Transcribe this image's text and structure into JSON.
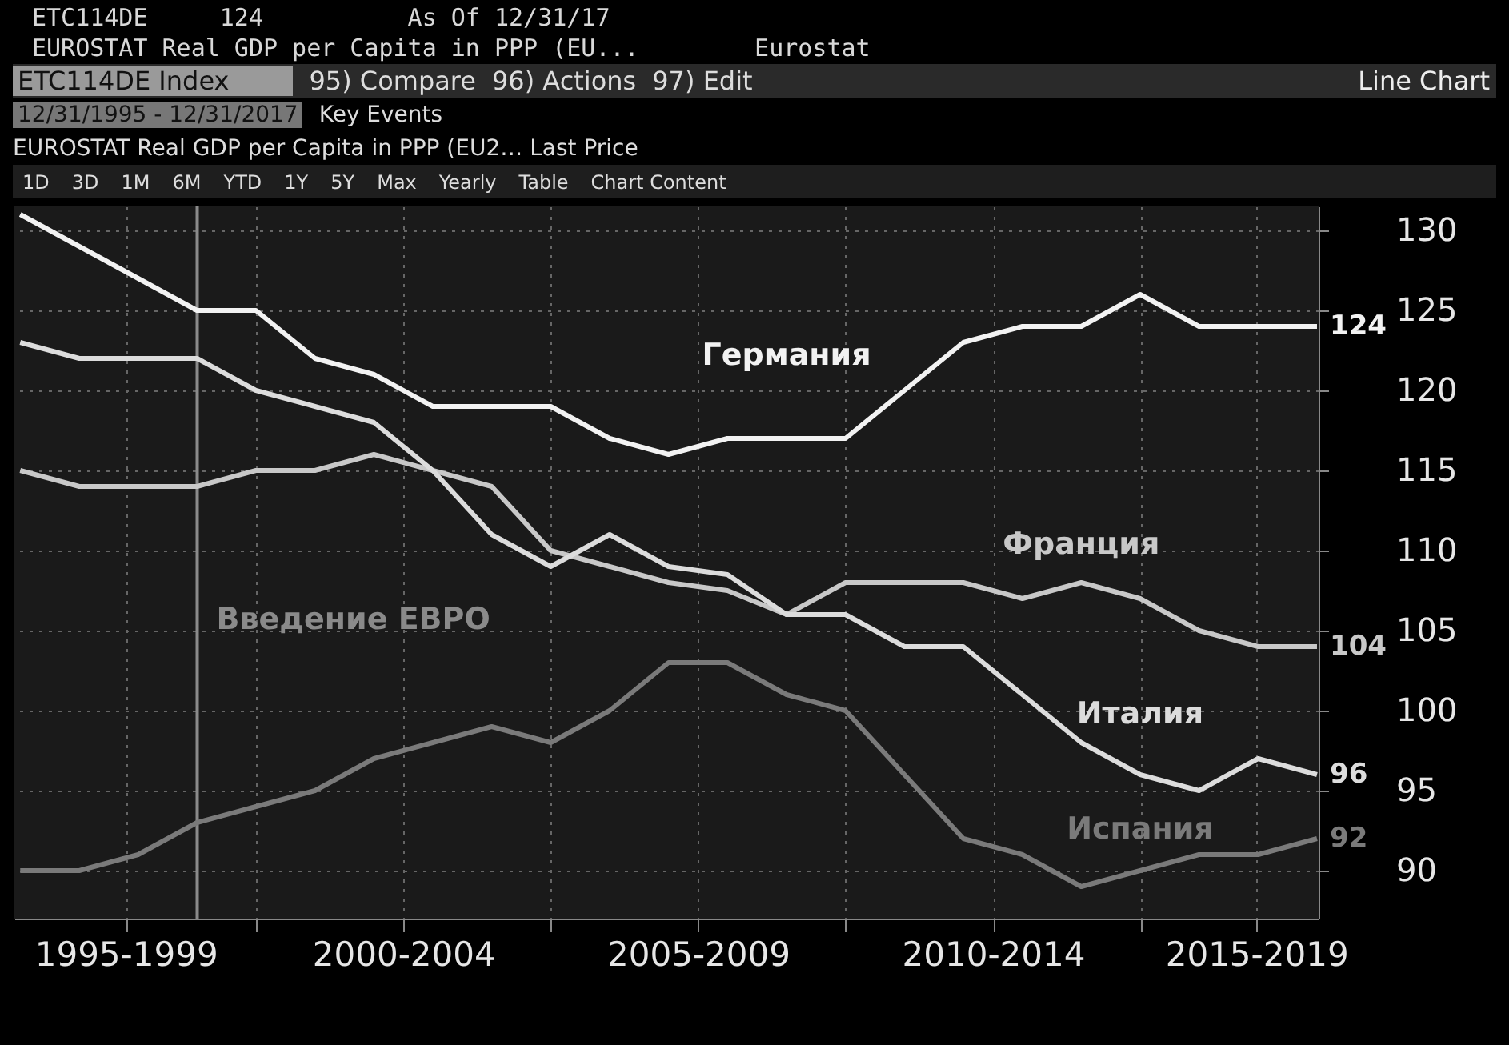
{
  "chart_data": {
    "type": "line",
    "subtitle": "ETC114DE     124          As Of 12/31/17",
    "title": "EUROSTAT Real GDP per Capita in PPP (EU...        Eurostat",
    "annotations": [
      "ETC114DE Index",
      "95) Compare",
      "96) Actions",
      "97) Edit",
      "Line Chart",
      "12/31/1995 - 12/31/2017",
      "Key Events",
      "EUROSTAT Real GDP per Capita in PPP (EU2…  Last Price",
      "1D",
      "3D",
      "1M",
      "6M",
      "YTD",
      "1Y",
      "5Y",
      "Max",
      "Yearly",
      "Table",
      "Chart Content"
    ],
    "x": [
      "1995-12-31",
      "1996-12-31",
      "1997-12-31",
      "1998-12-31",
      "1999-12-31",
      "2000-12-31",
      "2001-12-31",
      "2002-12-31",
      "2003-12-31",
      "2004-12-31",
      "2005-12-31",
      "2006-12-31",
      "2007-12-31",
      "2008-12-31",
      "2009-12-31",
      "2010-12-31",
      "2011-12-31",
      "2012-12-31",
      "2013-12-31",
      "2014-12-31",
      "2015-12-31",
      "2016-12-31",
      "2017-12-31"
    ],
    "series": [
      {
        "name": "Германия",
        "color": "#f2f2f2",
        "values": [
          131,
          129,
          127,
          125,
          125,
          122,
          121,
          119,
          119,
          119,
          117,
          116,
          117,
          117,
          117,
          120,
          123,
          124,
          124,
          126,
          124,
          124,
          124
        ],
        "value_labels": [
          null,
          null,
          null,
          null,
          null,
          null,
          null,
          null,
          null,
          null,
          null,
          null,
          null,
          null,
          null,
          null,
          null,
          null,
          null,
          null,
          null,
          null,
          "124"
        ]
      },
      {
        "name": "Франция",
        "color": "#c8c8c8",
        "values": [
          115,
          114,
          114,
          114,
          115,
          115,
          116,
          115,
          114,
          110,
          109,
          108,
          107.5,
          106,
          108,
          108,
          108,
          107,
          108,
          107,
          105,
          104,
          104
        ],
        "value_labels": [
          null,
          null,
          null,
          null,
          null,
          null,
          null,
          null,
          null,
          null,
          null,
          null,
          null,
          null,
          null,
          null,
          null,
          null,
          null,
          null,
          null,
          null,
          "104"
        ]
      },
      {
        "name": "Италия",
        "color": "#dcdcdc",
        "values": [
          123,
          122,
          122,
          122,
          120,
          119,
          118,
          115,
          111,
          109,
          111,
          109,
          108.5,
          106,
          106,
          104,
          104,
          101,
          98,
          96,
          95,
          97,
          96
        ],
        "value_labels": [
          null,
          null,
          null,
          null,
          null,
          null,
          null,
          null,
          null,
          null,
          null,
          null,
          null,
          null,
          null,
          null,
          null,
          null,
          null,
          null,
          null,
          null,
          "96"
        ]
      },
      {
        "name": "Испания",
        "color": "#7a7a7a",
        "values": [
          90,
          90,
          91,
          93,
          94,
          95,
          97,
          98,
          99,
          98,
          100,
          103,
          103,
          101,
          100,
          96,
          92,
          91,
          89,
          90,
          91,
          91,
          92
        ],
        "value_labels": [
          null,
          null,
          null,
          null,
          null,
          null,
          null,
          null,
          null,
          null,
          null,
          null,
          null,
          null,
          null,
          null,
          null,
          null,
          null,
          null,
          null,
          null,
          "92"
        ]
      }
    ],
    "xlim": [
      "1995-11-25",
      "2018-01-10"
    ],
    "xticks": [
      {
        "value": "1997-10-15",
        "label": "1995-1999"
      },
      {
        "value": "2000-01-01",
        "label": null
      },
      {
        "value": "2002-07-02",
        "label": "2000-2004"
      },
      {
        "value": "2005-01-01",
        "label": null
      },
      {
        "value": "2007-07-02",
        "label": "2005-2009"
      },
      {
        "value": "2010-01-01",
        "label": null
      },
      {
        "value": "2012-07-02",
        "label": "2010-2014"
      },
      {
        "value": "2015-01-01",
        "label": null
      },
      {
        "value": "2016-12-20",
        "label": "2015-2019"
      }
    ],
    "ylim": [
      87,
      131.5
    ],
    "yticks": [
      90,
      95,
      100,
      105,
      110,
      115,
      120,
      125,
      130
    ],
    "ref_lines": [
      {
        "axis": "x",
        "value": "1999-01-01",
        "label": "Введение ЕВРО",
        "color": "#8a8a8a"
      }
    ],
    "grid": true,
    "marker": "none",
    "line_style": "solid"
  }
}
